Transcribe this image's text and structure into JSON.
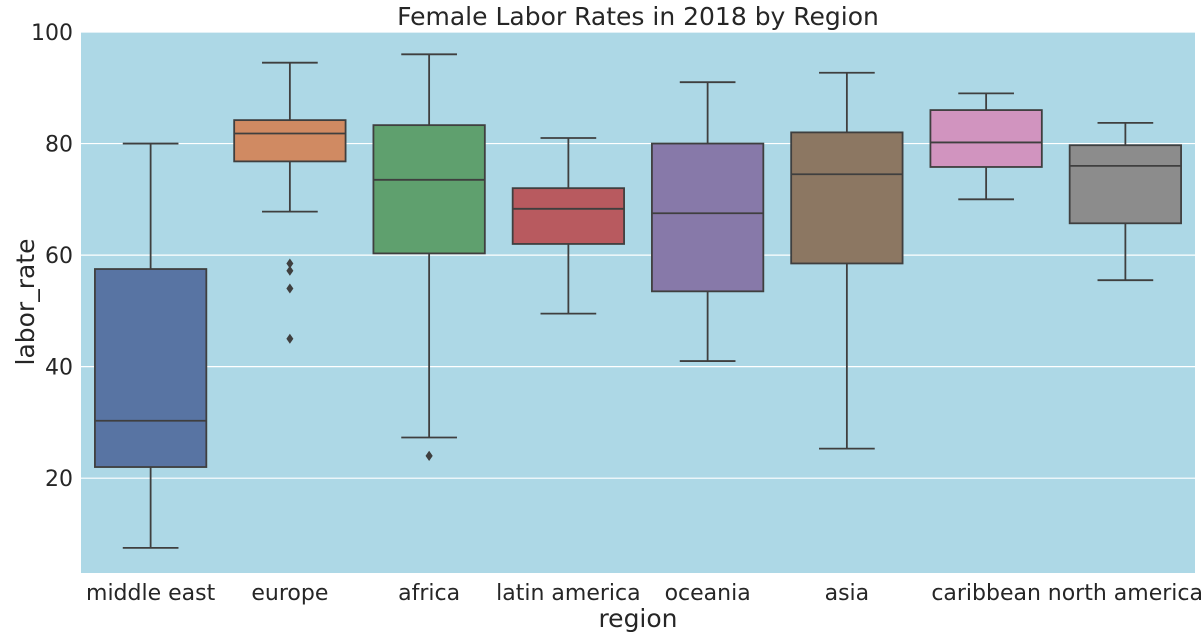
{
  "chart_data": {
    "type": "box",
    "title": "Female Labor Rates in 2018 by Region",
    "xlabel": "region",
    "ylabel": "labor_rate",
    "ylim": [
      3,
      100
    ],
    "yticks": [
      20,
      40,
      60,
      80,
      100
    ],
    "grid": true,
    "background_color": "#add8e6",
    "categories": [
      "middle east",
      "europe",
      "africa",
      "latin america",
      "oceania",
      "asia",
      "caribbean",
      "north america"
    ],
    "boxes": [
      {
        "category": "middle east",
        "color": "#5874a3",
        "whisker_low": 7.5,
        "q1": 22.0,
        "median": 30.3,
        "q3": 57.5,
        "whisker_high": 80.0,
        "outliers": []
      },
      {
        "category": "europe",
        "color": "#d08a62",
        "whisker_low": 67.8,
        "q1": 76.8,
        "median": 81.8,
        "q3": 84.2,
        "whisker_high": 94.5,
        "outliers": [
          58.5,
          57.2,
          54.0,
          45.0
        ]
      },
      {
        "category": "africa",
        "color": "#5fa06e",
        "whisker_low": 27.3,
        "q1": 60.3,
        "median": 73.5,
        "q3": 83.3,
        "whisker_high": 96.0,
        "outliers": [
          24.0,
          24.0
        ]
      },
      {
        "category": "latin america",
        "color": "#b85a5f",
        "whisker_low": 49.5,
        "q1": 62.0,
        "median": 68.3,
        "q3": 72.0,
        "whisker_high": 81.0,
        "outliers": []
      },
      {
        "category": "oceania",
        "color": "#8779a9",
        "whisker_low": 41.0,
        "q1": 53.5,
        "median": 67.5,
        "q3": 80.0,
        "whisker_high": 91.0,
        "outliers": []
      },
      {
        "category": "asia",
        "color": "#8c7762",
        "whisker_low": 25.3,
        "q1": 58.5,
        "median": 74.5,
        "q3": 82.0,
        "whisker_high": 92.7,
        "outliers": []
      },
      {
        "category": "caribbean",
        "color": "#d194bf",
        "whisker_low": 70.0,
        "q1": 75.8,
        "median": 80.2,
        "q3": 86.0,
        "whisker_high": 89.0,
        "outliers": []
      },
      {
        "category": "north america",
        "color": "#8c8c8c",
        "whisker_low": 55.5,
        "q1": 65.7,
        "median": 76.0,
        "q3": 79.7,
        "whisker_high": 83.7,
        "outliers": []
      }
    ]
  }
}
